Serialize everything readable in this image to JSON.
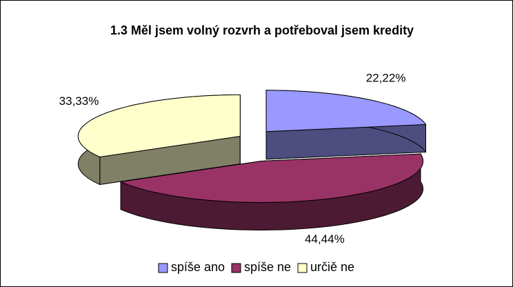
{
  "chart_data": {
    "type": "pie",
    "title": "1.3 Měl jsem volný rozvrh a potřeboval jsem kredity",
    "categories": [
      "spíše ano",
      "spíše ne",
      "určiě ne"
    ],
    "values": [
      22.22,
      44.44,
      33.33
    ],
    "value_labels": [
      "22,22%",
      "44,44%",
      "33,33%"
    ],
    "colors": [
      "#9999ff",
      "#993366",
      "#ffffcc"
    ],
    "legend": "bottom"
  }
}
